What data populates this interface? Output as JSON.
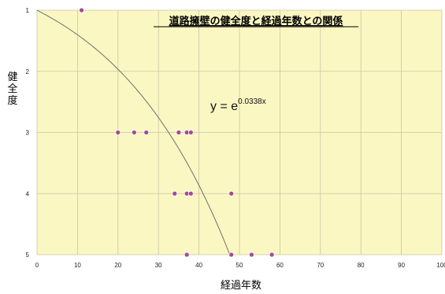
{
  "chart_data": {
    "type": "scatter",
    "title": "道路擁壁の健全度と経過年数との関係",
    "xlabel": "経過年数",
    "ylabel": "健全度",
    "xlim": [
      0,
      100
    ],
    "ylim": [
      1,
      5
    ],
    "y_inverted": true,
    "x_ticks": [
      "0",
      "10",
      "20",
      "30",
      "40",
      "50",
      "60",
      "70",
      "80",
      "90",
      "100"
    ],
    "y_ticks": [
      "1",
      "2",
      "3",
      "4",
      "5"
    ],
    "grid": true,
    "points": [
      {
        "x": 11,
        "y": 1
      },
      {
        "x": 20,
        "y": 3
      },
      {
        "x": 24,
        "y": 3
      },
      {
        "x": 27,
        "y": 3
      },
      {
        "x": 35,
        "y": 3
      },
      {
        "x": 37,
        "y": 3
      },
      {
        "x": 38,
        "y": 3
      },
      {
        "x": 34,
        "y": 4
      },
      {
        "x": 37,
        "y": 4
      },
      {
        "x": 38,
        "y": 4
      },
      {
        "x": 48,
        "y": 4
      },
      {
        "x": 37,
        "y": 5
      },
      {
        "x": 48,
        "y": 5
      },
      {
        "x": 53,
        "y": 5
      },
      {
        "x": 58,
        "y": 5
      }
    ],
    "trendline": {
      "equation_base": "y = e",
      "equation_exponent": "0.0338x",
      "function": "exp",
      "coefficient": 0.0338
    },
    "colors": {
      "plot_background": "#fbf7c2",
      "grid": "#c9c6a4",
      "point_fill": "#a54a95",
      "point_stroke": "#ffffff",
      "trendline": "#6f6f6f"
    }
  }
}
